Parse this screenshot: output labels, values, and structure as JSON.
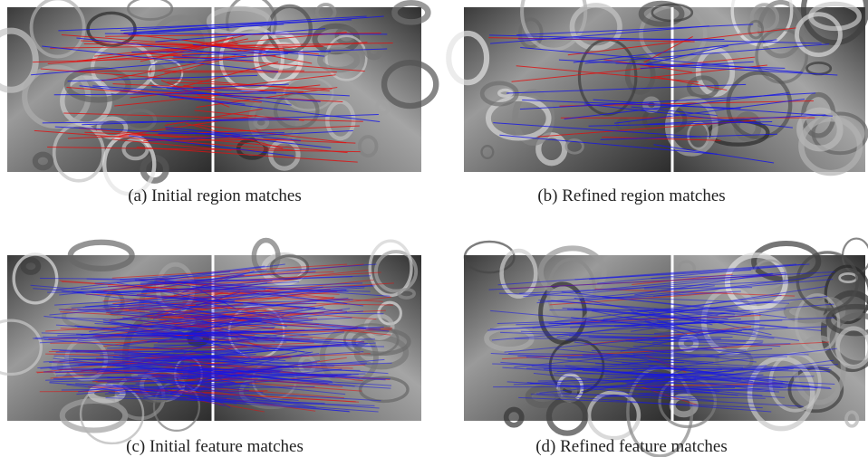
{
  "figure": {
    "panels": [
      {
        "caption": "(a) Initial region matches"
      },
      {
        "caption": "(b) Refined region matches"
      },
      {
        "caption": "(c) Initial feature matches"
      },
      {
        "caption": "(d) Refined feature matches"
      }
    ]
  }
}
